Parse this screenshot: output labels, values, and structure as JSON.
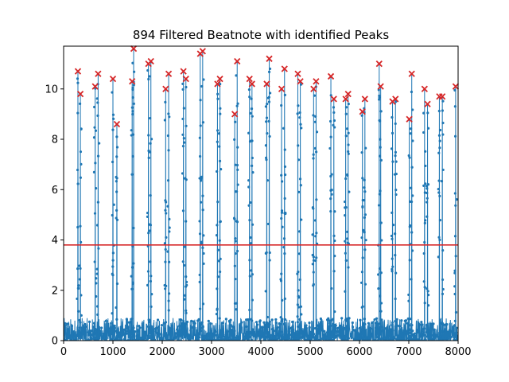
{
  "chart_data": {
    "type": "line",
    "title": "894 Filtered Beatnote with identified Peaks",
    "xlabel": "",
    "ylabel": "",
    "xlim": [
      0,
      8000
    ],
    "ylim": [
      0,
      11.7
    ],
    "xticks": [
      0,
      1000,
      2000,
      3000,
      4000,
      5000,
      6000,
      7000,
      8000
    ],
    "yticks": [
      0,
      2,
      4,
      6,
      8,
      10
    ],
    "grid": false,
    "threshold": 3.8,
    "peaks": {
      "x": [
        290,
        340,
        640,
        700,
        1000,
        1080,
        1390,
        1420,
        1720,
        1770,
        2070,
        2130,
        2430,
        2480,
        2770,
        2820,
        3120,
        3170,
        3470,
        3520,
        3770,
        3820,
        4120,
        4170,
        4420,
        4480,
        4750,
        4800,
        5070,
        5120,
        5420,
        5480,
        5720,
        5770,
        6060,
        6110,
        6400,
        6430,
        6670,
        6730,
        7010,
        7060,
        7320,
        7380,
        7620,
        7680,
        7950
      ],
      "y": [
        10.7,
        9.8,
        10.1,
        10.6,
        10.4,
        8.6,
        10.3,
        11.6,
        11.0,
        11.1,
        10.0,
        10.6,
        10.7,
        10.4,
        11.4,
        11.5,
        10.2,
        10.4,
        9.0,
        11.1,
        10.4,
        10.2,
        10.2,
        11.2,
        10.0,
        10.8,
        10.6,
        10.3,
        10.0,
        10.3,
        10.5,
        9.6,
        9.6,
        9.8,
        9.1,
        9.6,
        11.0,
        10.1,
        9.5,
        9.6,
        8.8,
        10.6,
        10.0,
        9.4,
        9.7,
        9.7,
        10.1
      ]
    },
    "series": [
      {
        "values_note": "",
        "color": "#1f77b4"
      }
    ],
    "colors": {
      "signal": "#1f77b4",
      "peak_marker": "#d62728",
      "threshold": "#d62728"
    }
  }
}
